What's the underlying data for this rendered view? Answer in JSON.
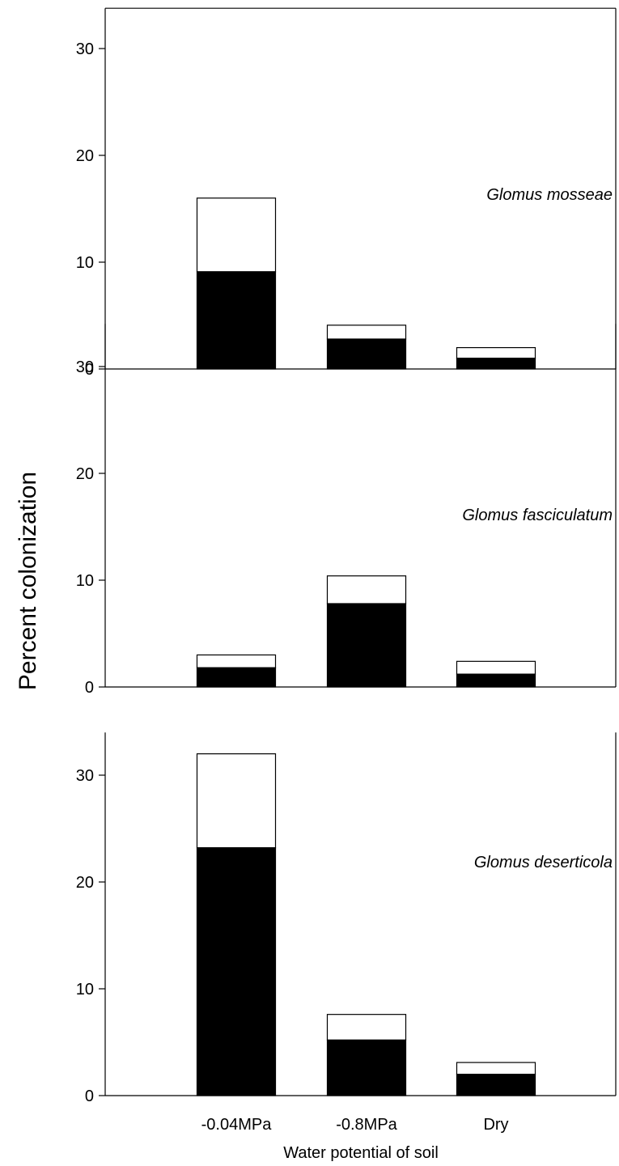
{
  "chart_data": {
    "type": "bar",
    "stacked": true,
    "xlabel": "Water potential of soil",
    "ylabel": "Percent colonization",
    "categories": [
      "-0.04MPa",
      "-0.8MPa",
      "Dry"
    ],
    "panels": [
      {
        "label": "Glomus mosseae",
        "ylim": [
          0,
          34
        ],
        "yticks": [
          0,
          10,
          20,
          30
        ],
        "series": [
          {
            "values": [
              9.1,
              2.8,
              1.0
            ]
          },
          {
            "values": [
              6.9,
              1.3,
              1.0
            ]
          }
        ]
      },
      {
        "label": "Glomus fasciculatum",
        "ylim": [
          0,
          34
        ],
        "yticks": [
          0,
          10,
          20,
          30
        ],
        "series": [
          {
            "values": [
              1.8,
              7.8,
              1.2
            ]
          },
          {
            "values": [
              1.2,
              2.6,
              1.2
            ]
          }
        ]
      },
      {
        "label": "Glomus deserticola",
        "ylim": [
          0,
          34
        ],
        "yticks": [
          0,
          10,
          20,
          30
        ],
        "series": [
          {
            "values": [
              23.2,
              5.2,
              2.0
            ]
          },
          {
            "values": [
              8.8,
              2.4,
              1.1
            ]
          }
        ]
      }
    ],
    "colors": {
      "lower": "#000000",
      "upper": "#ffffff",
      "stroke": "#000000"
    },
    "grid": false,
    "legend": "none"
  }
}
